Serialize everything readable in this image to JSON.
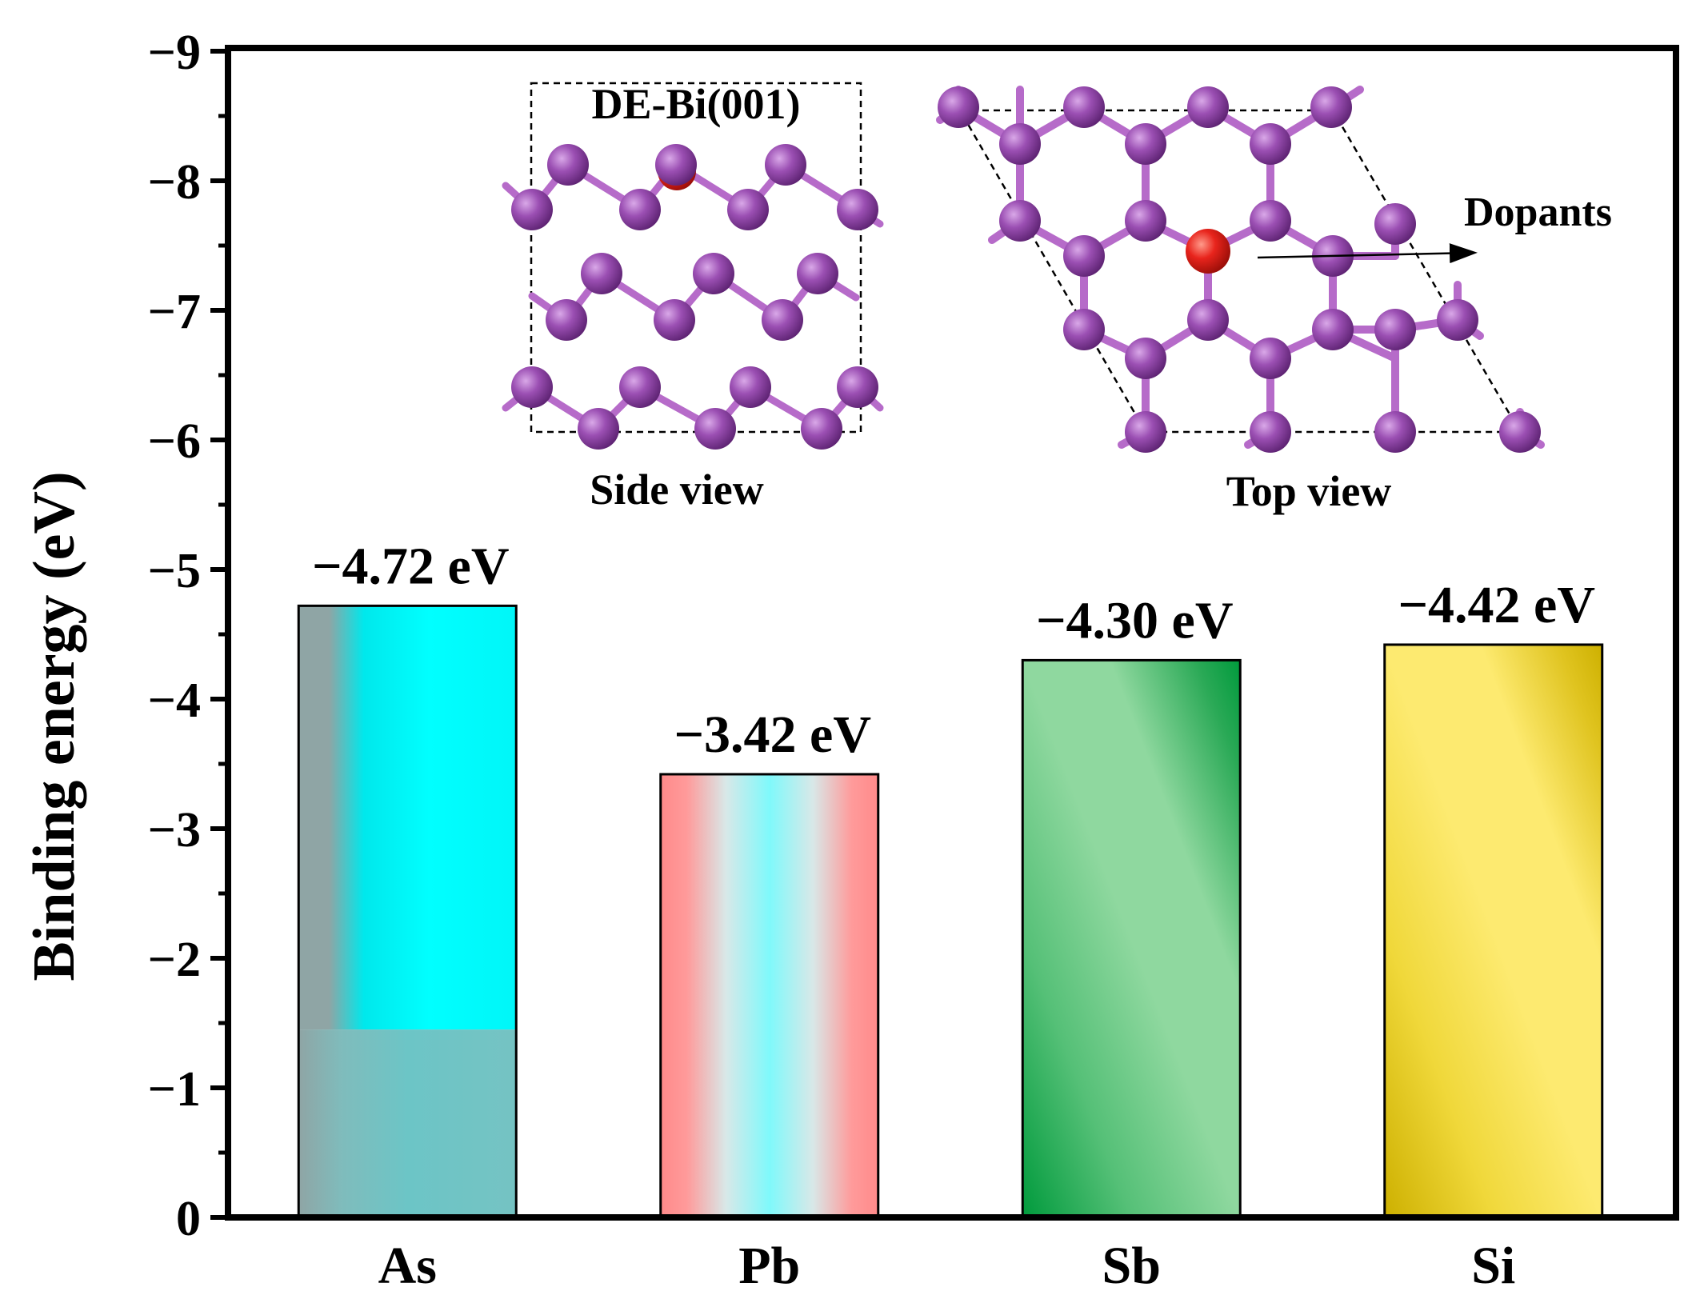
{
  "chart_data": {
    "type": "bar",
    "ylabel": "Binding energy (eV)",
    "yticks": [
      "0",
      "−1",
      "−2",
      "−3",
      "−4",
      "−5",
      "−6",
      "−7",
      "−8",
      "−9"
    ],
    "ylim": [
      0,
      -9
    ],
    "categories": [
      "As",
      "Pb",
      "Sb",
      "Si"
    ],
    "values": [
      -4.72,
      -3.42,
      -4.3,
      -4.42
    ],
    "data_labels": [
      "−4.72 eV",
      "−3.42 eV",
      "−4.30 eV",
      "−4.42 eV"
    ],
    "bar_colors": [
      [
        "#8fa5a5",
        "#00e8ec",
        "#00ffff"
      ],
      [
        "#ff8a8a",
        "#7ff9fb",
        "#ff8a8a"
      ],
      [
        "#8fd89f",
        "#009a3c"
      ],
      [
        "#fdea70",
        "#cdb000"
      ]
    ]
  },
  "inset": {
    "side_title": "DE-Bi(001)",
    "side_caption": "Side view",
    "top_caption": "Top view",
    "arrow_label": "Dopants",
    "atom_color": "#9b4fb3",
    "dopant_color": "#e8241c"
  }
}
